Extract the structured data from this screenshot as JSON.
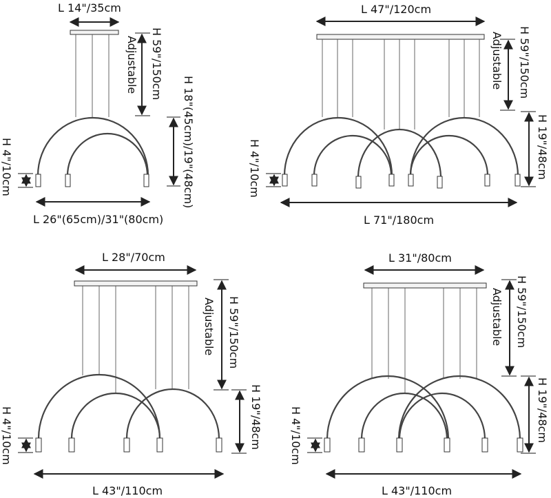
{
  "diagrams": {
    "top_left": {
      "canopy_length": "L 14\"/35cm",
      "cable_height": "H 59\"/150cm",
      "adjustable": "Adjustable",
      "fixture_height": "H 18\"(45cm)/19\"(48cm)",
      "lamp_height": "H 4\"/10cm",
      "total_length": "L 26\"(65cm)/31\"(80cm)"
    },
    "top_right": {
      "canopy_length": "L 47\"/120cm",
      "cable_height": "H 59\"/150cm",
      "adjustable": "Adjustable",
      "fixture_height": "H 19\"/48cm",
      "lamp_height": "H 4\"/10cm",
      "total_length": "L 71\"/180cm"
    },
    "bottom_left": {
      "canopy_length": "L 28\"/70cm",
      "cable_height": "H 59\"/150cm",
      "adjustable": "Adjustable",
      "fixture_height": "H 19\"/48cm",
      "lamp_height": "H 4\"/10cm",
      "total_length": "L 43\"/110cm"
    },
    "bottom_right": {
      "canopy_length": "L 31\"/80cm",
      "cable_height": "H 59\"/150cm",
      "adjustable": "Adjustable",
      "fixture_height": "H 19\"/48cm",
      "lamp_height": "H 4\"/10cm",
      "total_length": "L 43\"/110cm"
    }
  }
}
